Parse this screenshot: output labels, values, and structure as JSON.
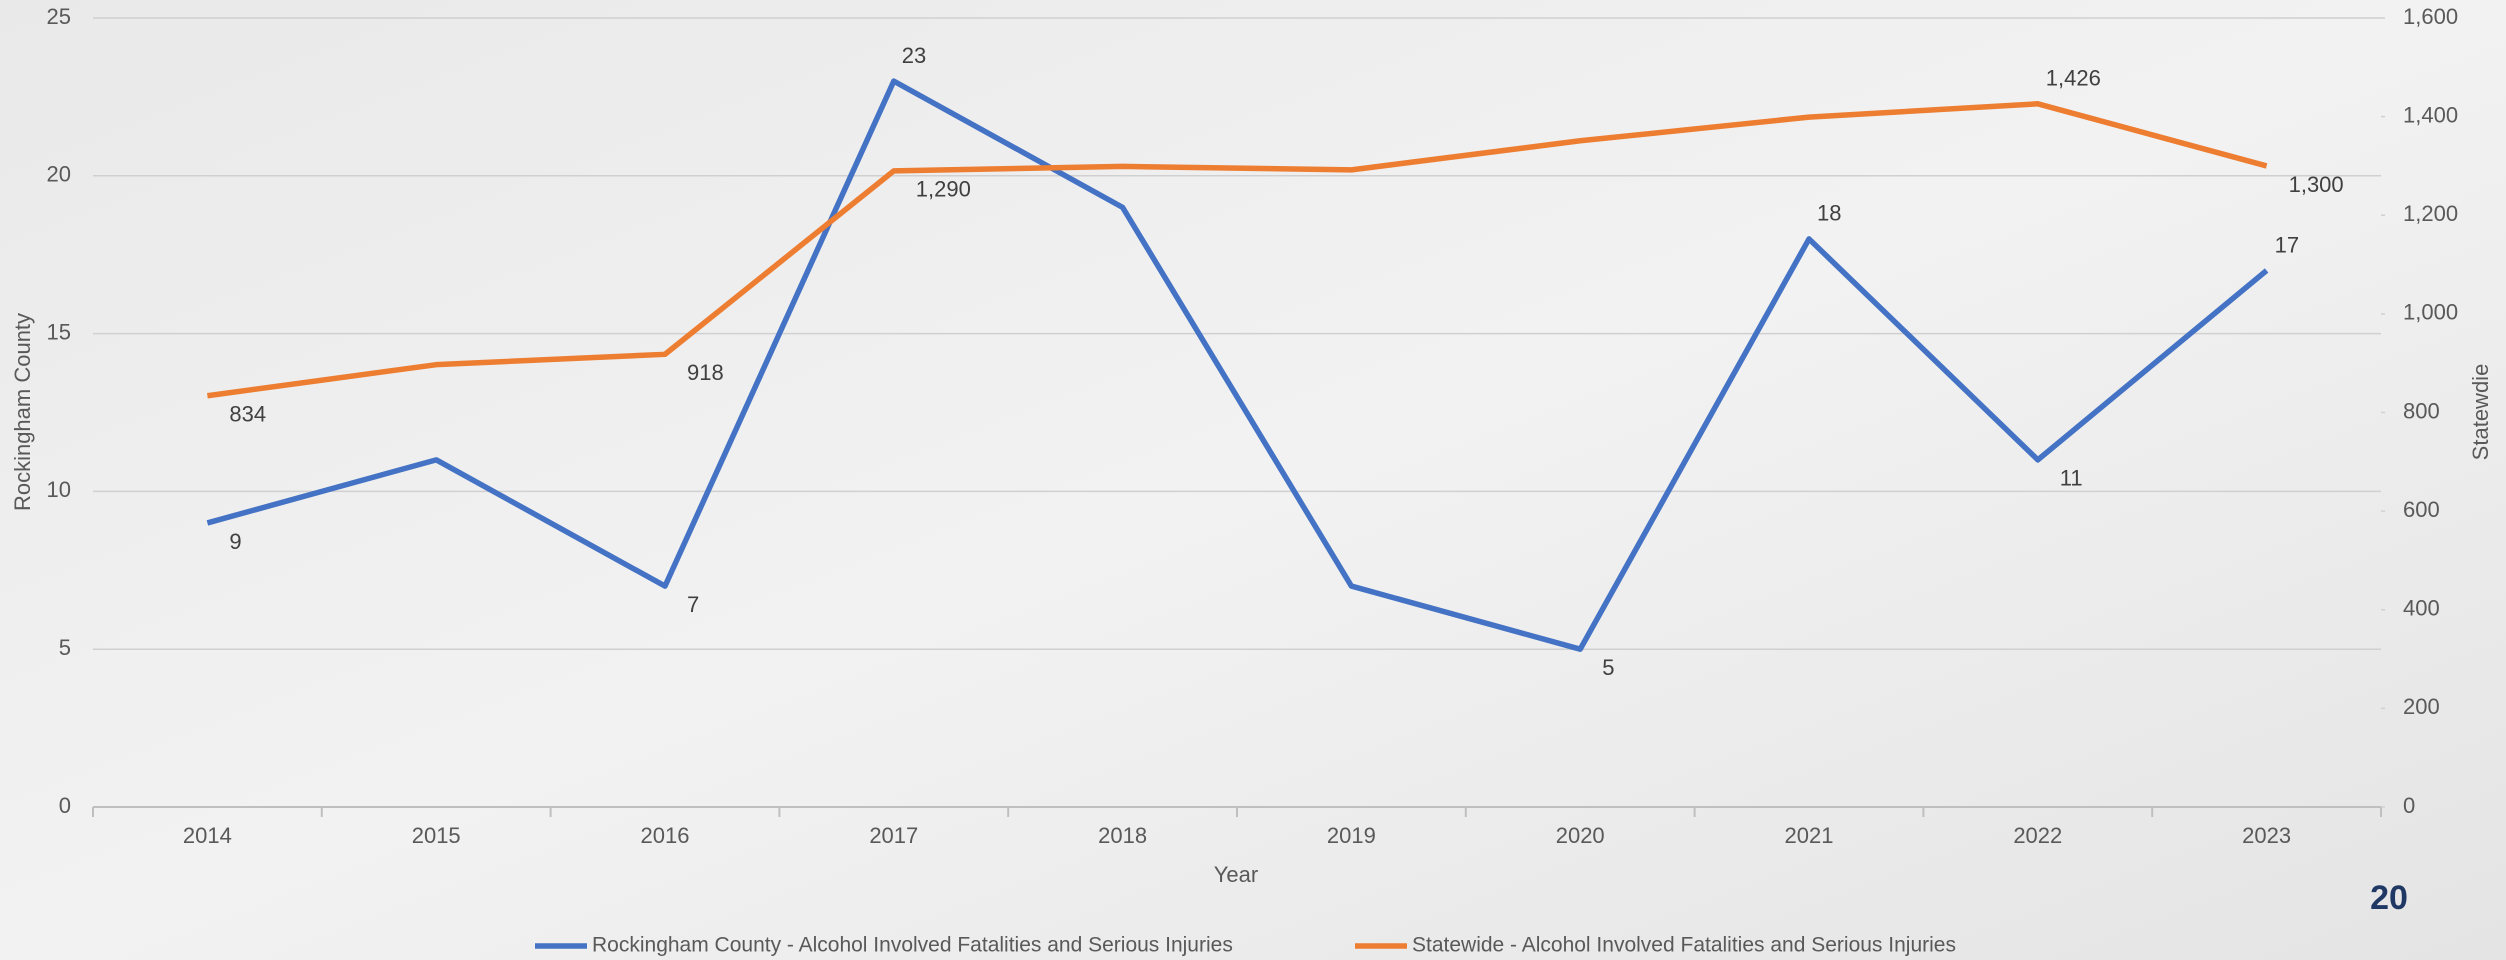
{
  "chart_data": {
    "type": "line",
    "x_label": "Year",
    "y_label": "Rockingham County",
    "y2_label": "Statewdie",
    "categories": [
      "2014",
      "2015",
      "2016",
      "2017",
      "2018",
      "2019",
      "2020",
      "2021",
      "2022",
      "2023"
    ],
    "series": [
      {
        "name": "Rockingham County - Alcohol Involved Fatalities and Serious Injuries",
        "color": "#4472c4",
        "axis": "y",
        "values": [
          9,
          11,
          7,
          23,
          19,
          7,
          5,
          18,
          11,
          17
        ],
        "value_labels": [
          "9",
          null,
          "7",
          "23",
          null,
          null,
          "5",
          "18",
          "11",
          "17"
        ]
      },
      {
        "name": "Statewide - Alcohol Involved Fatalities and Serious Injuries",
        "color": "#ed7d31",
        "axis": "y2",
        "values": [
          834,
          897,
          918,
          1290,
          1299,
          1292,
          1351,
          1399,
          1426,
          1300
        ],
        "value_labels": [
          "834",
          null,
          "918",
          "1,290",
          null,
          null,
          null,
          null,
          "1,426",
          "1,300"
        ]
      }
    ],
    "ylim": [
      0,
      25
    ],
    "yticks": [
      0,
      5,
      10,
      15,
      20,
      25
    ],
    "y2lim": [
      0,
      1600
    ],
    "y2ticks": [
      0,
      200,
      400,
      600,
      800,
      {
        "value": 1000,
        "label": "1,000"
      },
      {
        "value": 1200,
        "label": "1,200"
      },
      {
        "value": 1400,
        "label": "1,400"
      },
      {
        "value": 1600,
        "label": "1,600"
      }
    ],
    "grid": true,
    "legend": "bottom",
    "page_number": "20"
  }
}
